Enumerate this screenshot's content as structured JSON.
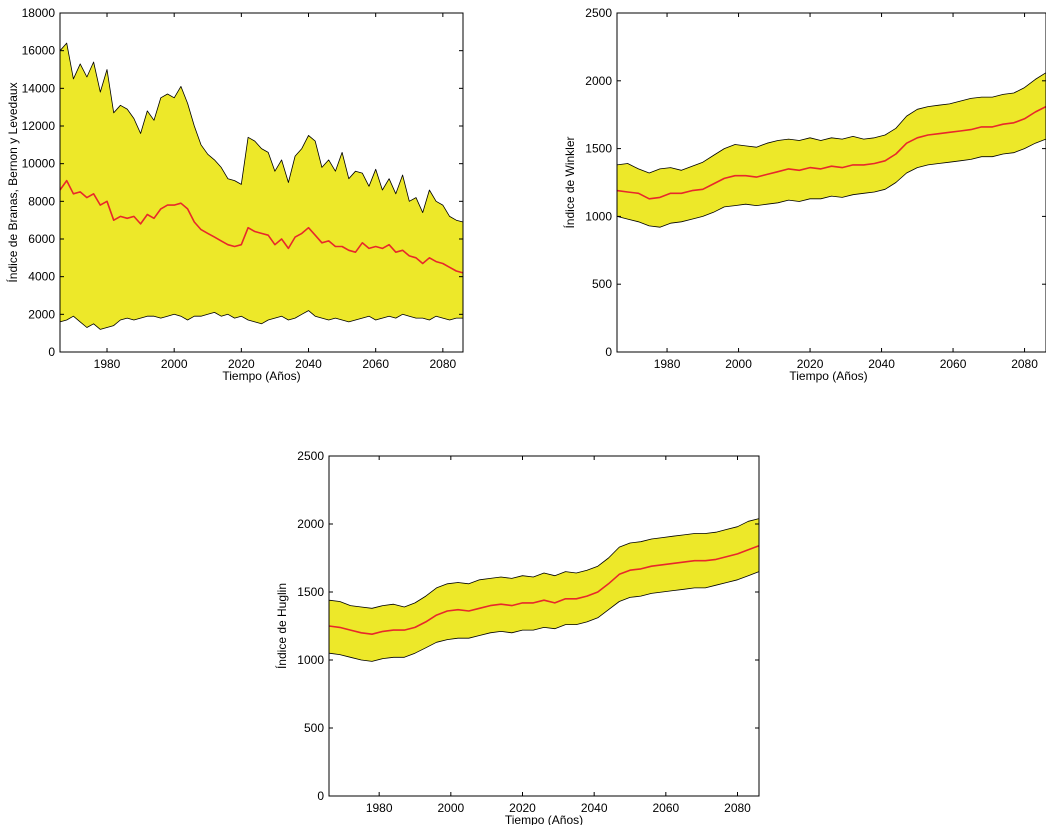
{
  "chart_data": [
    {
      "type": "area",
      "title": "",
      "xlabel": "Tiempo (Años)",
      "ylabel": "Índice de Branas, Bernon y Levedaux",
      "xlim": [
        1966,
        2086
      ],
      "ylim": [
        0,
        18000
      ],
      "xticks": [
        1980,
        2000,
        2020,
        2040,
        2060,
        2080
      ],
      "yticks": [
        0,
        2000,
        4000,
        6000,
        8000,
        10000,
        12000,
        14000,
        16000,
        18000
      ],
      "x": [
        1966,
        1968,
        1970,
        1972,
        1974,
        1976,
        1978,
        1980,
        1982,
        1984,
        1986,
        1988,
        1990,
        1992,
        1994,
        1996,
        1998,
        2000,
        2002,
        2004,
        2006,
        2008,
        2010,
        2012,
        2014,
        2016,
        2018,
        2020,
        2022,
        2024,
        2026,
        2028,
        2030,
        2032,
        2034,
        2036,
        2038,
        2040,
        2042,
        2044,
        2046,
        2048,
        2050,
        2052,
        2054,
        2056,
        2058,
        2060,
        2062,
        2064,
        2066,
        2068,
        2070,
        2072,
        2074,
        2076,
        2078,
        2080,
        2082,
        2084,
        2086
      ],
      "upper": [
        16000,
        16400,
        14500,
        15300,
        14600,
        15400,
        13800,
        15000,
        12700,
        13100,
        12900,
        12400,
        11600,
        12800,
        12300,
        13500,
        13700,
        13500,
        14100,
        13200,
        12000,
        11000,
        10500,
        10200,
        9800,
        9200,
        9100,
        8900,
        11400,
        11200,
        10800,
        10600,
        9600,
        10200,
        9000,
        10400,
        10800,
        11500,
        11200,
        9800,
        10200,
        9600,
        10600,
        9200,
        9600,
        9500,
        8800,
        9700,
        8600,
        9200,
        8400,
        9400,
        8000,
        8200,
        7400,
        8600,
        8000,
        7800,
        7200,
        7000,
        6900
      ],
      "median": [
        8600,
        9100,
        8400,
        8500,
        8200,
        8400,
        7800,
        8000,
        7000,
        7200,
        7100,
        7200,
        6800,
        7300,
        7100,
        7600,
        7800,
        7800,
        7900,
        7600,
        6900,
        6500,
        6300,
        6100,
        5900,
        5700,
        5600,
        5700,
        6600,
        6400,
        6300,
        6200,
        5700,
        6000,
        5500,
        6100,
        6300,
        6600,
        6200,
        5800,
        5900,
        5600,
        5600,
        5400,
        5300,
        5800,
        5500,
        5600,
        5500,
        5700,
        5300,
        5400,
        5100,
        5000,
        4700,
        5000,
        4800,
        4700,
        4500,
        4300,
        4200
      ],
      "lower": [
        1600,
        1700,
        1900,
        1600,
        1300,
        1500,
        1200,
        1300,
        1400,
        1700,
        1800,
        1700,
        1800,
        1900,
        1900,
        1800,
        1900,
        2000,
        1900,
        1700,
        1900,
        1900,
        2000,
        2100,
        1900,
        2000,
        1800,
        1900,
        1700,
        1600,
        1500,
        1700,
        1800,
        1900,
        1700,
        1800,
        2000,
        2200,
        1900,
        1800,
        1700,
        1800,
        1700,
        1600,
        1700,
        1800,
        1900,
        1700,
        1800,
        1900,
        1800,
        2000,
        1900,
        1800,
        1800,
        1700,
        1900,
        1800,
        1700,
        1800,
        1800
      ],
      "colors": {
        "band": "#ede829",
        "line": "#e8282a",
        "edge": "#000000"
      }
    },
    {
      "type": "area",
      "title": "",
      "xlabel": "Tiempo (Años)",
      "ylabel": "Índice de Winkler",
      "xlim": [
        1966,
        2086
      ],
      "ylim": [
        0,
        2500
      ],
      "xticks": [
        1980,
        2000,
        2020,
        2040,
        2060,
        2080
      ],
      "yticks": [
        0,
        500,
        1000,
        1500,
        2000,
        2500
      ],
      "x": [
        1966,
        1969,
        1972,
        1975,
        1978,
        1981,
        1984,
        1987,
        1990,
        1993,
        1996,
        1999,
        2002,
        2005,
        2008,
        2011,
        2014,
        2017,
        2020,
        2023,
        2026,
        2029,
        2032,
        2035,
        2038,
        2041,
        2044,
        2047,
        2050,
        2053,
        2056,
        2059,
        2062,
        2065,
        2068,
        2071,
        2074,
        2077,
        2080,
        2083,
        2086
      ],
      "upper": [
        1380,
        1390,
        1350,
        1320,
        1350,
        1360,
        1340,
        1370,
        1400,
        1450,
        1500,
        1530,
        1520,
        1510,
        1540,
        1560,
        1570,
        1560,
        1580,
        1560,
        1580,
        1570,
        1590,
        1570,
        1580,
        1600,
        1650,
        1740,
        1790,
        1810,
        1820,
        1830,
        1850,
        1870,
        1880,
        1880,
        1900,
        1910,
        1950,
        2010,
        2060
      ],
      "median": [
        1190,
        1180,
        1170,
        1130,
        1140,
        1170,
        1170,
        1190,
        1200,
        1240,
        1280,
        1300,
        1300,
        1290,
        1310,
        1330,
        1350,
        1340,
        1360,
        1350,
        1370,
        1360,
        1380,
        1380,
        1390,
        1410,
        1460,
        1540,
        1580,
        1600,
        1610,
        1620,
        1630,
        1640,
        1660,
        1660,
        1680,
        1690,
        1720,
        1770,
        1810
      ],
      "lower": [
        1000,
        980,
        960,
        930,
        920,
        950,
        960,
        980,
        1000,
        1030,
        1070,
        1080,
        1090,
        1080,
        1090,
        1100,
        1120,
        1110,
        1130,
        1130,
        1150,
        1140,
        1160,
        1170,
        1180,
        1200,
        1250,
        1320,
        1360,
        1380,
        1390,
        1400,
        1410,
        1420,
        1440,
        1440,
        1460,
        1470,
        1500,
        1540,
        1570
      ],
      "colors": {
        "band": "#ede829",
        "line": "#e8282a",
        "edge": "#000000"
      }
    },
    {
      "type": "area",
      "title": "",
      "xlabel": "Tiempo (Años)",
      "ylabel": "Índice de Huglin",
      "xlim": [
        1966,
        2086
      ],
      "ylim": [
        0,
        2500
      ],
      "xticks": [
        1980,
        2000,
        2020,
        2040,
        2060,
        2080
      ],
      "yticks": [
        0,
        500,
        1000,
        1500,
        2000,
        2500
      ],
      "x": [
        1966,
        1969,
        1972,
        1975,
        1978,
        1981,
        1984,
        1987,
        1990,
        1993,
        1996,
        1999,
        2002,
        2005,
        2008,
        2011,
        2014,
        2017,
        2020,
        2023,
        2026,
        2029,
        2032,
        2035,
        2038,
        2041,
        2044,
        2047,
        2050,
        2053,
        2056,
        2059,
        2062,
        2065,
        2068,
        2071,
        2074,
        2077,
        2080,
        2083,
        2086
      ],
      "upper": [
        1440,
        1430,
        1400,
        1390,
        1380,
        1400,
        1410,
        1390,
        1420,
        1470,
        1530,
        1560,
        1570,
        1560,
        1590,
        1600,
        1610,
        1600,
        1620,
        1610,
        1640,
        1620,
        1650,
        1640,
        1660,
        1690,
        1750,
        1830,
        1860,
        1870,
        1890,
        1900,
        1910,
        1920,
        1930,
        1930,
        1940,
        1960,
        1980,
        2020,
        2040
      ],
      "median": [
        1250,
        1240,
        1220,
        1200,
        1190,
        1210,
        1220,
        1220,
        1240,
        1280,
        1330,
        1360,
        1370,
        1360,
        1380,
        1400,
        1410,
        1400,
        1420,
        1420,
        1440,
        1420,
        1450,
        1450,
        1470,
        1500,
        1560,
        1630,
        1660,
        1670,
        1690,
        1700,
        1710,
        1720,
        1730,
        1730,
        1740,
        1760,
        1780,
        1810,
        1840
      ],
      "lower": [
        1050,
        1040,
        1020,
        1000,
        990,
        1010,
        1020,
        1020,
        1050,
        1090,
        1130,
        1150,
        1160,
        1160,
        1180,
        1200,
        1210,
        1200,
        1220,
        1220,
        1240,
        1230,
        1260,
        1260,
        1280,
        1310,
        1370,
        1430,
        1460,
        1470,
        1490,
        1500,
        1510,
        1520,
        1530,
        1530,
        1550,
        1570,
        1590,
        1620,
        1650
      ],
      "colors": {
        "band": "#ede829",
        "line": "#e8282a",
        "edge": "#000000"
      }
    }
  ]
}
